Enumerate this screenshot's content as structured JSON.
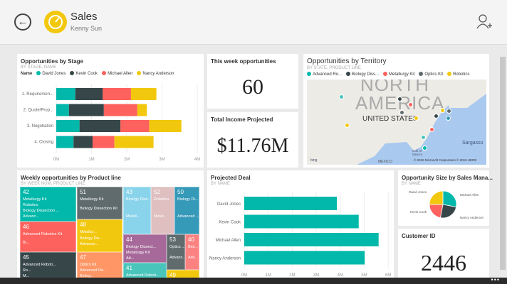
{
  "header": {
    "title": "Sales",
    "subtitle": "Kenny Sun"
  },
  "colors": {
    "teal": "#01b8aa",
    "dark": "#374649",
    "red": "#fd625e",
    "yellow": "#f2c80f"
  },
  "stage": {
    "title": "Opportunities by Stage",
    "subtitle": "BY STAGE, NAME",
    "legend_label": "Name",
    "chart_data": {
      "type": "bar",
      "stacked": true,
      "title": "Opportunities by Stage",
      "categories": [
        "1. Requiremen...",
        "2. Quote/Prop...",
        "3. Negotiation",
        "4. Closing"
      ],
      "series": [
        {
          "name": "David Jones",
          "color": "#01b8aa",
          "values": [
            0.54,
            0.36,
            0.66,
            0.49
          ]
        },
        {
          "name": "Kevin Cook",
          "color": "#374649",
          "values": [
            0.78,
            0.99,
            1.16,
            0.54
          ]
        },
        {
          "name": "Michael Allen",
          "color": "#fd625e",
          "values": [
            0.8,
            0.95,
            0.82,
            0.62
          ]
        },
        {
          "name": "Nancy Anderson",
          "color": "#f2c80f",
          "values": [
            0.72,
            0.27,
            0.91,
            1.11
          ]
        }
      ],
      "xlim": [
        0,
        4
      ],
      "ticks": [
        "0M",
        "1M",
        "2M",
        "3M",
        "4M"
      ]
    }
  },
  "week": {
    "title": "This week opportunities",
    "value": "60"
  },
  "income": {
    "title": "Total Income Projected",
    "value": "$11.76M"
  },
  "territory": {
    "title": "Opportunities by Territory",
    "subtitle": "BY STATE, PRODUCT LINE",
    "legend": [
      {
        "name": "Advanced Ro...",
        "color": "#01b8aa"
      },
      {
        "name": "Biology Diss...",
        "color": "#374649"
      },
      {
        "name": "Metallurgy Kit",
        "color": "#fd625e"
      },
      {
        "name": "Optics Kit",
        "color": "#5f6b6d"
      },
      {
        "name": "Robotics",
        "color": "#f2c80f"
      }
    ],
    "labels": {
      "continent1": "NORTH",
      "continent2": "AMERICA",
      "country": "UNITED STATES",
      "gulf": "Gulf of Mexico",
      "mexico": "MEXICO",
      "sargasso": "Sargasso",
      "bing": "bing",
      "copyright": "© 2015 Microsoft Corporation   © 2015 HERE"
    }
  },
  "treemap": {
    "title": "Weekly opportunities by Product line",
    "subtitle": "BY WEEK NUM, PRODUCT LINE",
    "cells": [
      {
        "week": "42",
        "labels": [
          "Metallurgy Kit",
          "Robotics",
          "Biology Dissection ...",
          "Advanc..."
        ]
      },
      {
        "week": "46",
        "labels": [
          "Advanced Robotics Kit",
          "Bi..."
        ]
      },
      {
        "week": "45",
        "labels": [
          "Advanced Roboti...",
          "Ro...",
          "M..."
        ]
      },
      {
        "week": "51",
        "labels": [
          "Metallurgy Kit",
          "Biology Dissection Kit"
        ]
      },
      {
        "week": "48",
        "labels": [
          "Metallur...",
          "Biology Dis...",
          "Advance..."
        ]
      },
      {
        "week": "47",
        "labels": [
          "Optics Kit",
          "Advanced Ro...",
          "Biolog..."
        ]
      },
      {
        "week": "43",
        "labels": [
          "Biology Diss...",
          "Metall..."
        ]
      },
      {
        "week": "52",
        "labels": [
          "Robotics",
          "Metal..."
        ]
      },
      {
        "week": "50",
        "labels": [
          "Biology Di...",
          "Advanced ..."
        ]
      },
      {
        "week": "44",
        "labels": [
          "Biology Dissect...",
          "Metallurgy Kit",
          "Ad..."
        ]
      },
      {
        "week": "41",
        "labels": [
          "Advanced Roboti..."
        ]
      },
      {
        "week": "53",
        "labels": [
          "Optics ...",
          "Advanc..."
        ]
      },
      {
        "week": "40",
        "labels": [
          "Biol...",
          "Adv..."
        ]
      },
      {
        "week": "49",
        "labels": []
      }
    ]
  },
  "deal": {
    "title": "Projected Deal",
    "subtitle": "BY NAME",
    "chart_data": {
      "type": "bar",
      "categories": [
        "David Jones",
        "Kevin Cook",
        "Michael Allen",
        "Nancy Anderson"
      ],
      "values": [
        3.86,
        4.77,
        5.6,
        5.02
      ],
      "xlim": [
        0,
        6
      ],
      "ticks": [
        "0M",
        "1M",
        "2M",
        "3M",
        "4M",
        "5M",
        "6M"
      ],
      "color": "#01b8aa"
    }
  },
  "pie": {
    "title": "Opportunity Size by Sales Mana...",
    "subtitle": "BY NAME",
    "chart_data": {
      "type": "pie",
      "slices": [
        {
          "name": "Michael Allen",
          "value": 28,
          "color": "#01b8aa"
        },
        {
          "name": "Nancy Anderson",
          "value": 25,
          "color": "#374649"
        },
        {
          "name": "Kevin Cook",
          "value": 22,
          "color": "#fd625e"
        },
        {
          "name": "David Jones",
          "value": 25,
          "color": "#f2c80f"
        }
      ]
    }
  },
  "customer": {
    "title": "Customer ID",
    "value": "2446"
  },
  "bottom": {
    "more": "•••"
  }
}
